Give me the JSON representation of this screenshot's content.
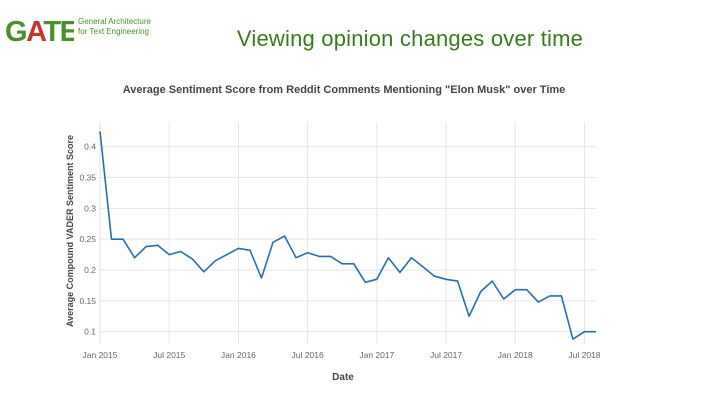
{
  "logo": {
    "mark_text": "GATE",
    "line1": "General Architecture",
    "line2": "for Text Engineering",
    "green": "#4a8f2c",
    "red": "#c0392b"
  },
  "slide": {
    "title": "Viewing opinion changes over time"
  },
  "chart_data": {
    "type": "line",
    "title": "Average Sentiment Score from Reddit Comments Mentioning \"Elon Musk\" over Time",
    "xlabel": "Date",
    "ylabel": "Average Compound VADER Sentiment Score",
    "line_color": "#2a6ea6",
    "grid": true,
    "ylim": [
      0.08,
      0.44
    ],
    "yticks": [
      0.1,
      0.15,
      0.2,
      0.25,
      0.3,
      0.35,
      0.4
    ],
    "ytick_labels": [
      "0.1",
      "0.15",
      "0.2",
      "0.25",
      "0.3",
      "0.35",
      "0.4"
    ],
    "xlim": [
      0,
      43
    ],
    "xticks": [
      0,
      6,
      12,
      18,
      24,
      30,
      36,
      42
    ],
    "xtick_labels": [
      "Jan 2015",
      "Jul 2015",
      "Jan 2016",
      "Jul 2016",
      "Jan 2017",
      "Jul 2017",
      "Jan 2018",
      "Jul 2018"
    ],
    "x": [
      0,
      1,
      2,
      3,
      4,
      5,
      6,
      7,
      8,
      9,
      10,
      11,
      12,
      13,
      14,
      15,
      16,
      17,
      18,
      19,
      20,
      21,
      22,
      23,
      24,
      25,
      26,
      27,
      28,
      29,
      30,
      31,
      32,
      33,
      34,
      35,
      36,
      37,
      38,
      39,
      40,
      41,
      42,
      43
    ],
    "values": [
      0.425,
      0.25,
      0.25,
      0.22,
      0.238,
      0.24,
      0.225,
      0.23,
      0.218,
      0.197,
      0.215,
      0.225,
      0.235,
      0.232,
      0.187,
      0.245,
      0.255,
      0.22,
      0.228,
      0.222,
      0.222,
      0.21,
      0.21,
      0.18,
      0.185,
      0.22,
      0.196,
      0.22,
      0.205,
      0.19,
      0.185,
      0.182,
      0.125,
      0.165,
      0.182,
      0.153,
      0.168,
      0.168,
      0.148,
      0.158,
      0.158,
      0.088,
      0.1,
      0.1
    ]
  }
}
